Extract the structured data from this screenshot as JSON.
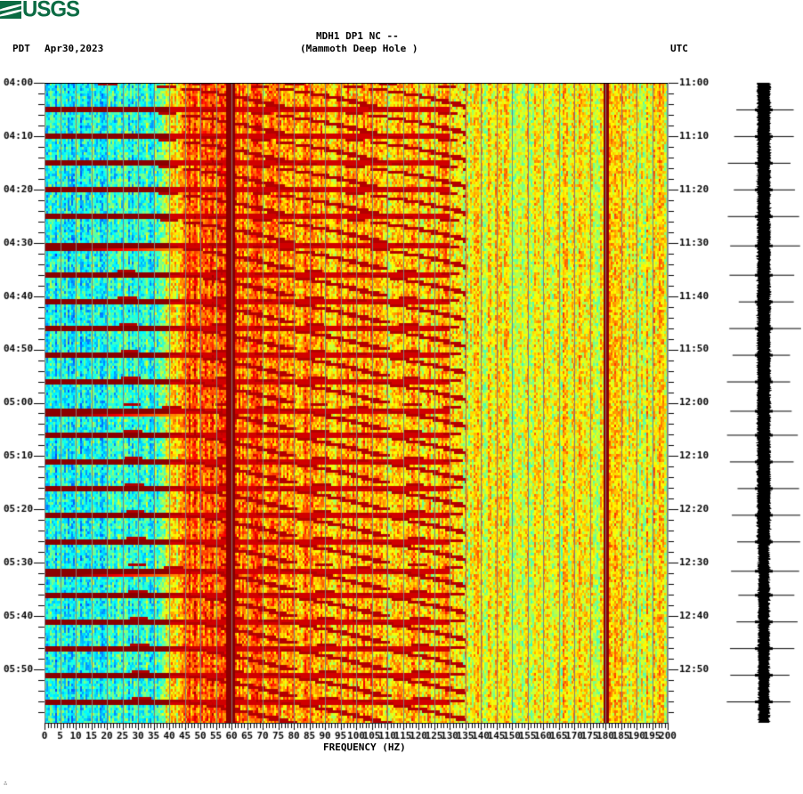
{
  "header": {
    "logo_text": "USGS",
    "station_line": "MDH1 DP1 NC --",
    "station_name": "(Mammoth Deep Hole )",
    "left_timezone": "PDT",
    "date": "Apr30,2023",
    "right_timezone": "UTC"
  },
  "colors": {
    "logo_green": "#0b6b43",
    "grid_line": "#808080",
    "colormap": [
      "#00008f",
      "#0000ff",
      "#0080ff",
      "#00ffff",
      "#80ff80",
      "#ffff00",
      "#ff8000",
      "#ff0000",
      "#800000"
    ]
  },
  "footer": {
    "corner_mark": "∴"
  },
  "chart_data": {
    "type": "heatmap",
    "title": "MDH1 DP1 NC -- (Mammoth Deep Hole )",
    "subtitle": "Apr30,2023",
    "xlabel": "FREQUENCY (HZ)",
    "ylabel_left": "PDT",
    "ylabel_right": "UTC",
    "xlim": [
      0,
      200
    ],
    "x_ticks": [
      0,
      5,
      10,
      15,
      20,
      25,
      30,
      35,
      40,
      45,
      50,
      55,
      60,
      65,
      70,
      75,
      80,
      85,
      90,
      95,
      100,
      105,
      110,
      115,
      120,
      125,
      130,
      135,
      140,
      145,
      150,
      155,
      160,
      165,
      170,
      175,
      180,
      185,
      190,
      195,
      200
    ],
    "x_minor_tick_step": 1,
    "y_ticks_left": [
      "04:00",
      "04:10",
      "04:20",
      "04:30",
      "04:40",
      "04:50",
      "05:00",
      "05:10",
      "05:20",
      "05:30",
      "05:40",
      "05:50"
    ],
    "y_ticks_right": [
      "11:00",
      "11:10",
      "11:20",
      "11:30",
      "11:40",
      "11:50",
      "12:00",
      "12:10",
      "12:20",
      "12:30",
      "12:40",
      "12:50"
    ],
    "y_minor_tick_step_minutes": 2,
    "time_span_minutes": 120,
    "grid_vertical_every_hz": 5,
    "persistent_lines_hz": [
      59.5,
      180
    ],
    "broadband_event_minutes": [
      5,
      10,
      15,
      20,
      25,
      30.5,
      36,
      41,
      46,
      51,
      56,
      61.5,
      66,
      71,
      76,
      81,
      86,
      91.5,
      96,
      101,
      106,
      111,
      116
    ],
    "strong_event_minutes": [
      30.5,
      61.5,
      91.5
    ],
    "sweep_period_minutes": 5,
    "sweep_note": "Repeating chirp-like harmonic sweeps rising from ~20 Hz to ~130 Hz every ~5 min",
    "background": {
      "0-35Hz": "cyan/blue (low)",
      "35-130Hz": "orange/red (high)",
      "130-200Hz": "yellow/green (medium)"
    },
    "seismogram_trace": {
      "position": "right",
      "spike_minutes": [
        5,
        10,
        15,
        20,
        25,
        30.5,
        36,
        41,
        46,
        51,
        56,
        61.5,
        66,
        71,
        76,
        81,
        86,
        91.5,
        96,
        101,
        106,
        111,
        116
      ]
    }
  }
}
